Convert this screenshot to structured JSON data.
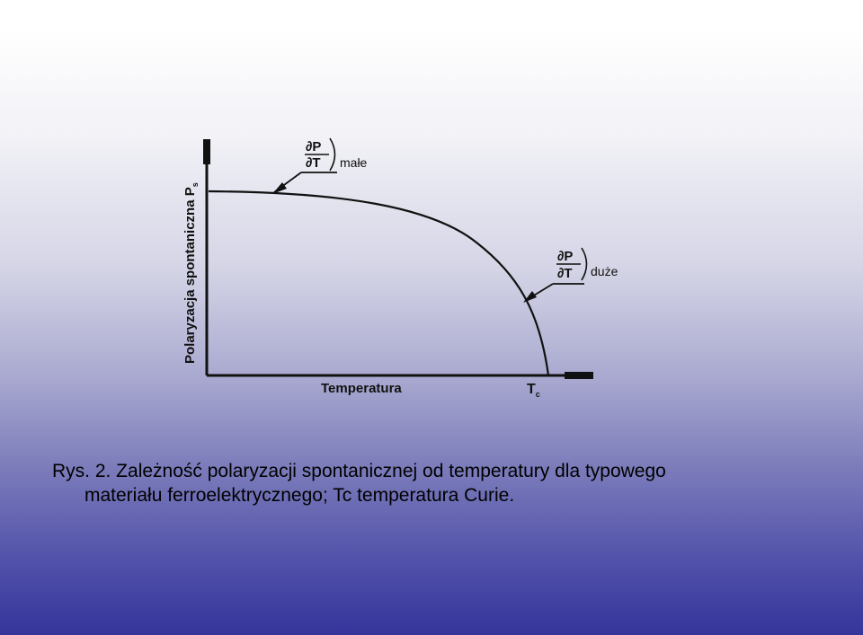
{
  "figure": {
    "y_axis_label": "Polaryzacja spontaniczna P",
    "y_axis_subscript": "s",
    "x_axis_label": "Temperatura",
    "tc_label": "T",
    "tc_subscript": "c",
    "deriv_numerator": "∂P",
    "deriv_denominator": "∂T",
    "small_slope_label": "małe",
    "large_slope_label": "duże"
  },
  "caption": {
    "line1": "Rys. 2. Zależność polaryzacji spontanicznej od temperatury dla typowego",
    "line2": "materiału ferroelektrycznego; Tc   temperatura Curie."
  }
}
